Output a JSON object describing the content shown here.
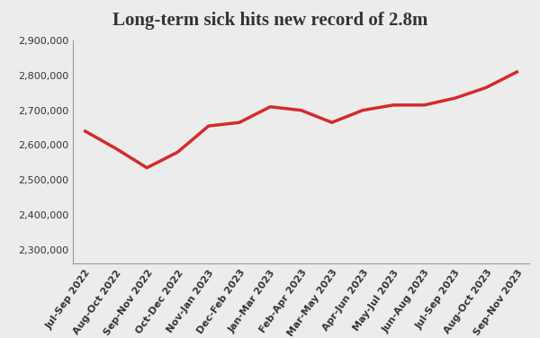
{
  "chart_data": {
    "type": "line",
    "title": "Long-term sick hits new record of 2.8m",
    "categories": [
      "Jul-Sep 2022",
      "Aug-Oct 2022",
      "Sep-Nov 2022",
      "Oct-Dec 2022",
      "Nov-Jan 2023",
      "Dec-Feb 2023",
      "Jan-Mar 2023",
      "Feb-Apr 2023",
      "Mar-May 2023",
      "Apr-Jun 2023",
      "May-Jul 2023",
      "Jun-Aug 2023",
      "Jul-Sep 2023",
      "Aug-Oct 2023",
      "Sep-Nov 2023"
    ],
    "values": [
      2640000,
      2590000,
      2535000,
      2580000,
      2655000,
      2665000,
      2710000,
      2700000,
      2665000,
      2700000,
      2715000,
      2715000,
      2735000,
      2765000,
      2810000
    ],
    "color": "#d42a2a",
    "ylim": [
      2260000,
      2900000
    ],
    "yticks": [
      {
        "value": 2300000,
        "label": "2,300,000"
      },
      {
        "value": 2400000,
        "label": "2,400,000"
      },
      {
        "value": 2500000,
        "label": "2,500,000"
      },
      {
        "value": 2600000,
        "label": "2,600,000"
      },
      {
        "value": 2700000,
        "label": "2,700,000"
      },
      {
        "value": 2800000,
        "label": "2,800,000"
      },
      {
        "value": 2900000,
        "label": "2,900,000"
      }
    ],
    "grid": false
  }
}
